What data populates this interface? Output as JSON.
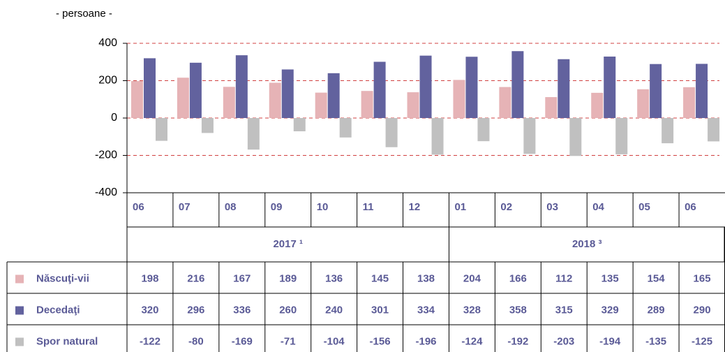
{
  "chart_data": {
    "type": "bar",
    "y_label": "- persoane -",
    "groups": [
      {
        "label": "2017 ¹",
        "categories": [
          "06",
          "07",
          "08",
          "09",
          "10",
          "11",
          "12"
        ]
      },
      {
        "label": "2018 ³",
        "categories": [
          "01",
          "02",
          "03",
          "04",
          "05",
          "06"
        ]
      }
    ],
    "series": [
      {
        "name": "Născuţi-vii",
        "color": "#e6b3b6",
        "values": [
          198,
          216,
          167,
          189,
          136,
          145,
          138,
          204,
          166,
          112,
          135,
          154,
          165
        ]
      },
      {
        "name": "Decedaţi",
        "color": "#62629e",
        "values": [
          320,
          296,
          336,
          260,
          240,
          301,
          334,
          328,
          358,
          315,
          329,
          289,
          290
        ]
      },
      {
        "name": "Spor natural",
        "color": "#c0c0c0",
        "values": [
          -122,
          -80,
          -169,
          -71,
          -104,
          -156,
          -196,
          -124,
          -192,
          -203,
          -194,
          -135,
          -125
        ]
      }
    ],
    "ylim": [
      -400,
      400
    ],
    "yticks": [
      400,
      200,
      0,
      -200,
      -400
    ],
    "grid": true
  }
}
